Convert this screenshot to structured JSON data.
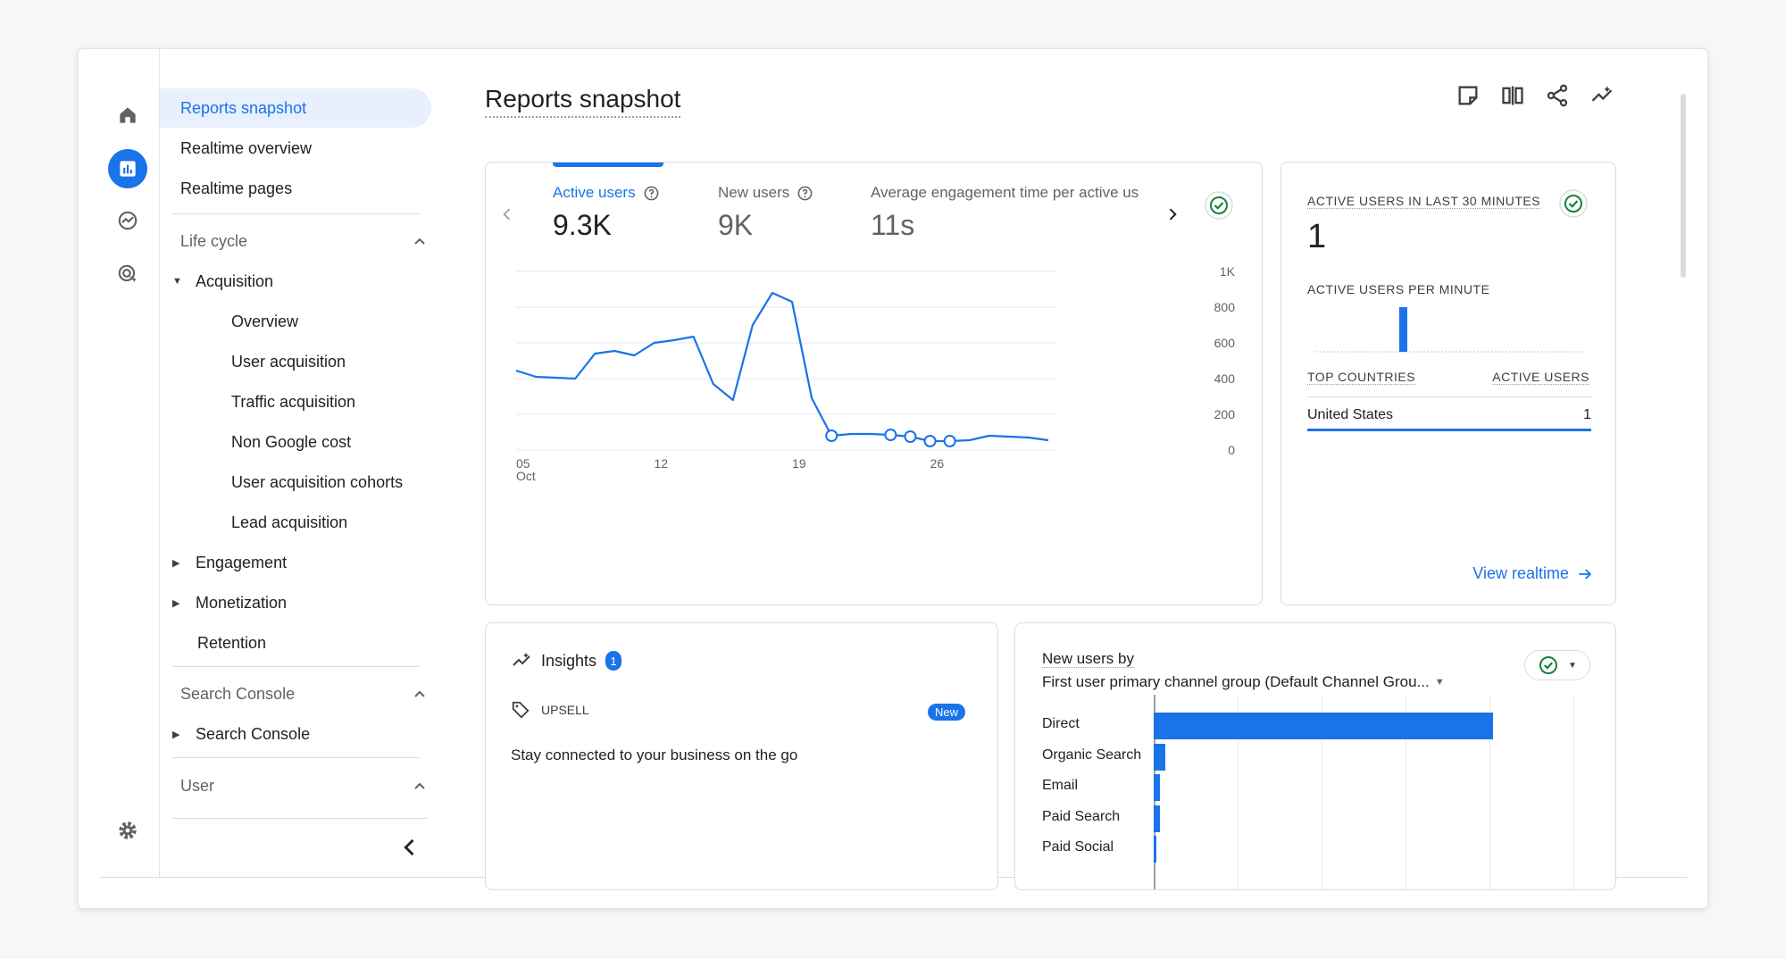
{
  "nav": {
    "selected": "Reports snapshot",
    "items_top": [
      "Realtime overview",
      "Realtime pages"
    ],
    "lifecycle": {
      "title": "Life cycle",
      "acquisition": "Acquisition",
      "acq_items": [
        "Overview",
        "User acquisition",
        "Traffic acquisition",
        "Non Google cost",
        "User acquisition cohorts",
        "Lead acquisition"
      ],
      "engagement": "Engagement",
      "monetization": "Monetization",
      "retention": "Retention"
    },
    "search_console": {
      "title": "Search Console",
      "item": "Search Console"
    },
    "user": {
      "title": "User"
    }
  },
  "header": {
    "title": "Reports snapshot"
  },
  "metrics": [
    {
      "label": "Active users",
      "value": "9.3K"
    },
    {
      "label": "New users",
      "value": "9K"
    },
    {
      "label": "Average engagement time per active us",
      "value": "11s"
    }
  ],
  "chart_data": {
    "type": "line",
    "x": [
      "Oct 5",
      "Oct 6",
      "Oct 7",
      "Oct 8",
      "Oct 9",
      "Oct 10",
      "Oct 11",
      "Oct 12",
      "Oct 13",
      "Oct 14",
      "Oct 15",
      "Oct 16",
      "Oct 17",
      "Oct 18",
      "Oct 19",
      "Oct 20",
      "Oct 21",
      "Oct 22",
      "Oct 23",
      "Oct 24",
      "Oct 25",
      "Oct 26",
      "Oct 27",
      "Oct 28",
      "Oct 29",
      "Oct 30",
      "Oct 31",
      "Nov 1"
    ],
    "series": [
      {
        "values": [
          445,
          410,
          405,
          400,
          540,
          555,
          530,
          600,
          615,
          635,
          370,
          280,
          700,
          880,
          830,
          290,
          80,
          90,
          90,
          85,
          75,
          50,
          50,
          55,
          80,
          75,
          70,
          55
        ]
      }
    ],
    "x_tick_labels": [
      "05",
      "12",
      "19",
      "26"
    ],
    "x_tick_sublabel": "Oct",
    "y_tick_labels": [
      "1K",
      "800",
      "600",
      "400",
      "200",
      "0"
    ],
    "ylim": [
      0,
      1000
    ],
    "grid": true
  },
  "realtime": {
    "heading": "ACTIVE USERS IN LAST 30 MINUTES",
    "value": "1",
    "per_minute_heading": "ACTIVE USERS PER MINUTE",
    "col_countries": "TOP COUNTRIES",
    "col_users": "ACTIVE USERS",
    "row_country": "United States",
    "row_value": "1",
    "link": "View realtime"
  },
  "insights": {
    "title": "Insights",
    "count": "1",
    "tag": "UPSELL",
    "new_label": "New",
    "text": "Stay connected to your business on the go"
  },
  "channels": {
    "title": "New users by",
    "dimension": "First user primary channel group (Default Channel Grou...",
    "labels": [
      "Direct",
      "Organic Search",
      "Email",
      "Paid Search",
      "Paid Social"
    ],
    "values": [
      8700,
      300,
      150,
      150,
      40
    ]
  }
}
